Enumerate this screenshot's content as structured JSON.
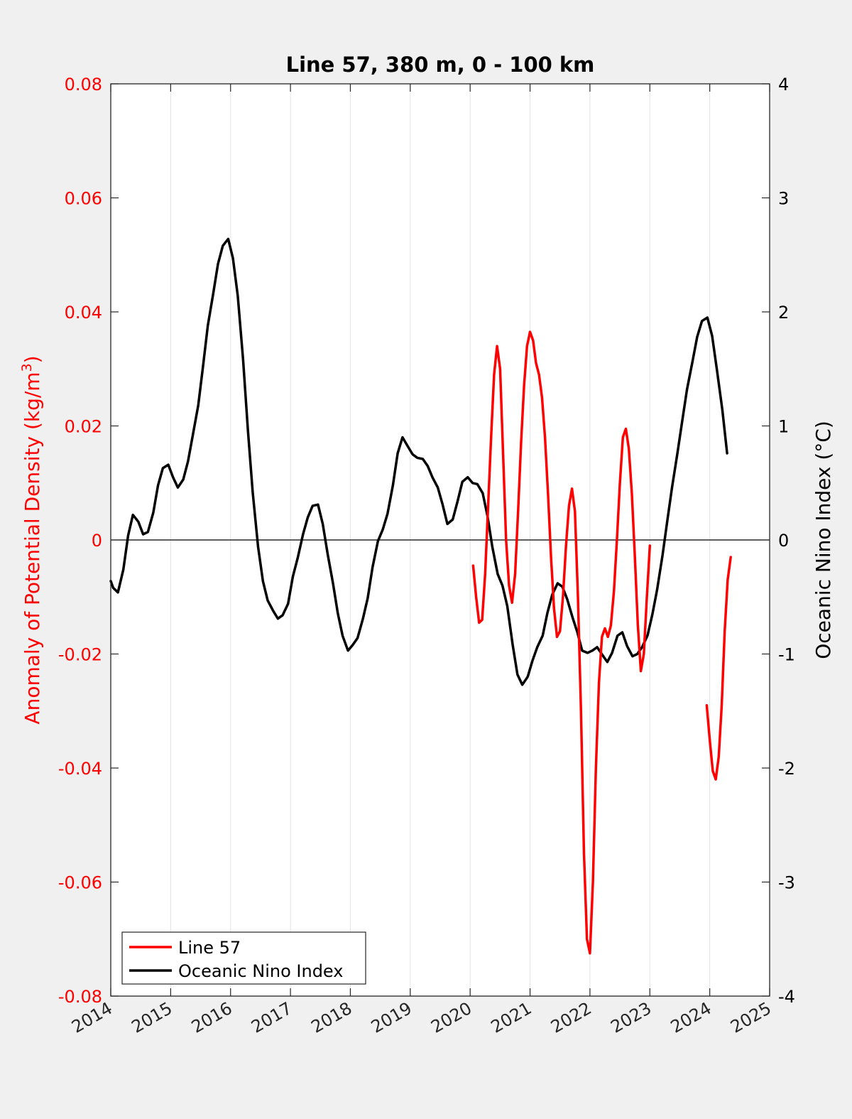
{
  "chart_data": {
    "type": "line",
    "title": "Line 57, 380 m, 0 - 100 km",
    "ylabel_left_main": "Anomaly of Potential Density (kg/m",
    "ylabel_left_sup": "3",
    "ylabel_left_close": ")",
    "ylabel_right": "Oceanic Nino Index (°C)",
    "xlim": [
      2014,
      2025
    ],
    "ylim_left": [
      -0.08,
      0.08
    ],
    "ylim_right": [
      -4,
      4
    ],
    "x_ticks": [
      "2014",
      "2015",
      "2016",
      "2017",
      "2018",
      "2019",
      "2020",
      "2021",
      "2022",
      "2023",
      "2024",
      "2025"
    ],
    "y_ticks_left": [
      "0.08",
      "0.06",
      "0.04",
      "0.02",
      "0",
      "-0.02",
      "-0.04",
      "-0.06",
      "-0.08"
    ],
    "y_ticks_right": [
      "4",
      "3",
      "2",
      "1",
      "0",
      "-1",
      "-2",
      "-3",
      "-4"
    ],
    "colors": {
      "line57": "#ff0000",
      "oni": "#000000",
      "left_axis": "#ff0000",
      "right_axis": "#000000"
    },
    "legend_position": "bottom-left",
    "zero_line": true,
    "series": [
      {
        "name": "Line 57",
        "axis": "left",
        "segments": [
          [
            [
              2020.05,
              -0.0045
            ],
            [
              2020.1,
              -0.01
            ],
            [
              2020.15,
              -0.0145
            ],
            [
              2020.2,
              -0.014
            ],
            [
              2020.25,
              -0.006
            ],
            [
              2020.3,
              0.006
            ],
            [
              2020.35,
              0.018
            ],
            [
              2020.4,
              0.029
            ],
            [
              2020.45,
              0.034
            ],
            [
              2020.5,
              0.03
            ],
            [
              2020.55,
              0.015
            ],
            [
              2020.6,
              0.0
            ],
            [
              2020.65,
              -0.008
            ],
            [
              2020.7,
              -0.011
            ],
            [
              2020.75,
              -0.006
            ],
            [
              2020.8,
              0.005
            ],
            [
              2020.85,
              0.017
            ],
            [
              2020.9,
              0.027
            ],
            [
              2020.95,
              0.034
            ],
            [
              2021.0,
              0.0365
            ],
            [
              2021.05,
              0.035
            ],
            [
              2021.1,
              0.031
            ],
            [
              2021.15,
              0.029
            ],
            [
              2021.2,
              0.025
            ],
            [
              2021.25,
              0.018
            ],
            [
              2021.3,
              0.008
            ],
            [
              2021.35,
              -0.003
            ],
            [
              2021.4,
              -0.012
            ],
            [
              2021.45,
              -0.017
            ],
            [
              2021.5,
              -0.016
            ],
            [
              2021.55,
              -0.01
            ],
            [
              2021.6,
              -0.001
            ],
            [
              2021.65,
              0.006
            ],
            [
              2021.7,
              0.009
            ],
            [
              2021.75,
              0.005
            ],
            [
              2021.8,
              -0.01
            ],
            [
              2021.85,
              -0.03
            ],
            [
              2021.9,
              -0.055
            ],
            [
              2021.95,
              -0.07
            ],
            [
              2022.0,
              -0.0725
            ],
            [
              2022.05,
              -0.06
            ],
            [
              2022.1,
              -0.04
            ],
            [
              2022.15,
              -0.025
            ],
            [
              2022.2,
              -0.017
            ],
            [
              2022.25,
              -0.0155
            ],
            [
              2022.3,
              -0.017
            ],
            [
              2022.35,
              -0.015
            ],
            [
              2022.4,
              -0.009
            ],
            [
              2022.45,
              0.0
            ],
            [
              2022.5,
              0.01
            ],
            [
              2022.55,
              0.018
            ],
            [
              2022.6,
              0.0195
            ],
            [
              2022.65,
              0.016
            ],
            [
              2022.7,
              0.008
            ],
            [
              2022.75,
              -0.003
            ],
            [
              2022.8,
              -0.015
            ],
            [
              2022.85,
              -0.023
            ],
            [
              2022.9,
              -0.02
            ],
            [
              2022.95,
              -0.01
            ],
            [
              2023.0,
              -0.001
            ]
          ],
          [
            [
              2023.95,
              -0.029
            ],
            [
              2024.0,
              -0.035
            ],
            [
              2024.05,
              -0.0405
            ],
            [
              2024.1,
              -0.042
            ],
            [
              2024.15,
              -0.038
            ],
            [
              2024.2,
              -0.029
            ],
            [
              2024.25,
              -0.016
            ],
            [
              2024.3,
              -0.007
            ],
            [
              2024.35,
              -0.003
            ]
          ]
        ]
      },
      {
        "name": "Oceanic Nino Index",
        "axis": "right",
        "points": [
          [
            2014.0,
            -0.36
          ],
          [
            2014.04,
            -0.42
          ],
          [
            2014.12,
            -0.46
          ],
          [
            2014.21,
            -0.26
          ],
          [
            2014.29,
            0.04
          ],
          [
            2014.37,
            0.22
          ],
          [
            2014.46,
            0.16
          ],
          [
            2014.54,
            0.05
          ],
          [
            2014.62,
            0.07
          ],
          [
            2014.71,
            0.24
          ],
          [
            2014.79,
            0.48
          ],
          [
            2014.87,
            0.63
          ],
          [
            2014.96,
            0.66
          ],
          [
            2015.04,
            0.55
          ],
          [
            2015.12,
            0.46
          ],
          [
            2015.21,
            0.53
          ],
          [
            2015.29,
            0.69
          ],
          [
            2015.37,
            0.92
          ],
          [
            2015.46,
            1.18
          ],
          [
            2015.54,
            1.52
          ],
          [
            2015.62,
            1.88
          ],
          [
            2015.71,
            2.16
          ],
          [
            2015.79,
            2.42
          ],
          [
            2015.87,
            2.58
          ],
          [
            2015.96,
            2.64
          ],
          [
            2016.04,
            2.47
          ],
          [
            2016.12,
            2.14
          ],
          [
            2016.21,
            1.58
          ],
          [
            2016.29,
            0.96
          ],
          [
            2016.37,
            0.42
          ],
          [
            2016.46,
            -0.06
          ],
          [
            2016.54,
            -0.36
          ],
          [
            2016.62,
            -0.53
          ],
          [
            2016.71,
            -0.62
          ],
          [
            2016.79,
            -0.69
          ],
          [
            2016.87,
            -0.66
          ],
          [
            2016.96,
            -0.56
          ],
          [
            2017.04,
            -0.32
          ],
          [
            2017.12,
            -0.16
          ],
          [
            2017.21,
            0.05
          ],
          [
            2017.29,
            0.2
          ],
          [
            2017.37,
            0.3
          ],
          [
            2017.46,
            0.31
          ],
          [
            2017.54,
            0.14
          ],
          [
            2017.62,
            -0.12
          ],
          [
            2017.71,
            -0.38
          ],
          [
            2017.79,
            -0.64
          ],
          [
            2017.87,
            -0.84
          ],
          [
            2017.96,
            -0.97
          ],
          [
            2018.04,
            -0.92
          ],
          [
            2018.12,
            -0.86
          ],
          [
            2018.21,
            -0.69
          ],
          [
            2018.29,
            -0.51
          ],
          [
            2018.37,
            -0.24
          ],
          [
            2018.46,
            -0.01
          ],
          [
            2018.54,
            0.09
          ],
          [
            2018.62,
            0.23
          ],
          [
            2018.71,
            0.48
          ],
          [
            2018.79,
            0.76
          ],
          [
            2018.87,
            0.9
          ],
          [
            2018.96,
            0.82
          ],
          [
            2019.04,
            0.75
          ],
          [
            2019.12,
            0.72
          ],
          [
            2019.21,
            0.71
          ],
          [
            2019.29,
            0.65
          ],
          [
            2019.37,
            0.55
          ],
          [
            2019.46,
            0.46
          ],
          [
            2019.54,
            0.31
          ],
          [
            2019.62,
            0.14
          ],
          [
            2019.71,
            0.18
          ],
          [
            2019.79,
            0.34
          ],
          [
            2019.87,
            0.51
          ],
          [
            2019.96,
            0.55
          ],
          [
            2020.04,
            0.5
          ],
          [
            2020.12,
            0.49
          ],
          [
            2020.21,
            0.41
          ],
          [
            2020.29,
            0.21
          ],
          [
            2020.37,
            -0.06
          ],
          [
            2020.46,
            -0.3
          ],
          [
            2020.54,
            -0.4
          ],
          [
            2020.62,
            -0.58
          ],
          [
            2020.71,
            -0.92
          ],
          [
            2020.79,
            -1.18
          ],
          [
            2020.87,
            -1.27
          ],
          [
            2020.96,
            -1.2
          ],
          [
            2021.04,
            -1.06
          ],
          [
            2021.12,
            -0.94
          ],
          [
            2021.21,
            -0.84
          ],
          [
            2021.29,
            -0.64
          ],
          [
            2021.37,
            -0.48
          ],
          [
            2021.46,
            -0.38
          ],
          [
            2021.54,
            -0.41
          ],
          [
            2021.62,
            -0.52
          ],
          [
            2021.71,
            -0.68
          ],
          [
            2021.79,
            -0.81
          ],
          [
            2021.87,
            -0.97
          ],
          [
            2021.96,
            -0.99
          ],
          [
            2022.04,
            -0.97
          ],
          [
            2022.12,
            -0.94
          ],
          [
            2022.21,
            -1.01
          ],
          [
            2022.29,
            -1.07
          ],
          [
            2022.37,
            -0.99
          ],
          [
            2022.46,
            -0.84
          ],
          [
            2022.54,
            -0.81
          ],
          [
            2022.62,
            -0.93
          ],
          [
            2022.71,
            -1.02
          ],
          [
            2022.79,
            -1.0
          ],
          [
            2022.87,
            -0.94
          ],
          [
            2022.96,
            -0.84
          ],
          [
            2023.04,
            -0.66
          ],
          [
            2023.12,
            -0.44
          ],
          [
            2023.21,
            -0.14
          ],
          [
            2023.29,
            0.16
          ],
          [
            2023.37,
            0.46
          ],
          [
            2023.46,
            0.76
          ],
          [
            2023.54,
            1.04
          ],
          [
            2023.62,
            1.32
          ],
          [
            2023.71,
            1.56
          ],
          [
            2023.79,
            1.78
          ],
          [
            2023.87,
            1.92
          ],
          [
            2023.96,
            1.95
          ],
          [
            2024.04,
            1.79
          ],
          [
            2024.12,
            1.49
          ],
          [
            2024.21,
            1.14
          ],
          [
            2024.29,
            0.76
          ]
        ]
      }
    ],
    "legend": [
      {
        "label": "Line 57",
        "color": "#ff0000"
      },
      {
        "label": "Oceanic Nino Index",
        "color": "#000000"
      }
    ]
  }
}
